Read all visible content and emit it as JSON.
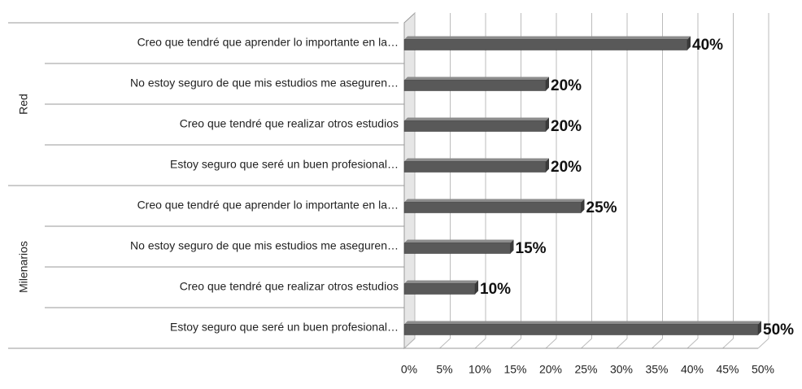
{
  "chart_data": {
    "type": "bar",
    "orientation": "horizontal",
    "color": "#595959",
    "groups": [
      {
        "name": "Red",
        "categories": [
          "Creo que tendré que aprender lo importante en la…",
          "No estoy seguro de que mis estudios me aseguren…",
          "Creo que tendré que realizar otros estudios",
          "Estoy seguro que seré un buen profesional…"
        ],
        "values": [
          40,
          20,
          20,
          20
        ],
        "value_labels": [
          "40%",
          "20%",
          "20%",
          "20%"
        ]
      },
      {
        "name": "Milenarios",
        "categories": [
          "Creo que tendré que aprender lo importante en la…",
          "No estoy seguro de que mis estudios me aseguren…",
          "Creo que tendré que realizar otros estudios",
          "Estoy seguro que seré un buen profesional…"
        ],
        "values": [
          25,
          15,
          10,
          50
        ],
        "value_labels": [
          "25%",
          "15%",
          "10%",
          "50%"
        ]
      }
    ],
    "xlim": [
      0,
      50
    ],
    "xticks": [
      {
        "value": 0,
        "label": "0%"
      },
      {
        "value": 5,
        "label": "5%"
      },
      {
        "value": 10,
        "label": "10%"
      },
      {
        "value": 15,
        "label": "15%"
      },
      {
        "value": 20,
        "label": "20%"
      },
      {
        "value": 25,
        "label": "25%"
      },
      {
        "value": 30,
        "label": "30%"
      },
      {
        "value": 35,
        "label": "35%"
      },
      {
        "value": 40,
        "label": "40%"
      },
      {
        "value": 45,
        "label": "45%"
      },
      {
        "value": 50,
        "label": "50%"
      }
    ],
    "grid": true
  }
}
